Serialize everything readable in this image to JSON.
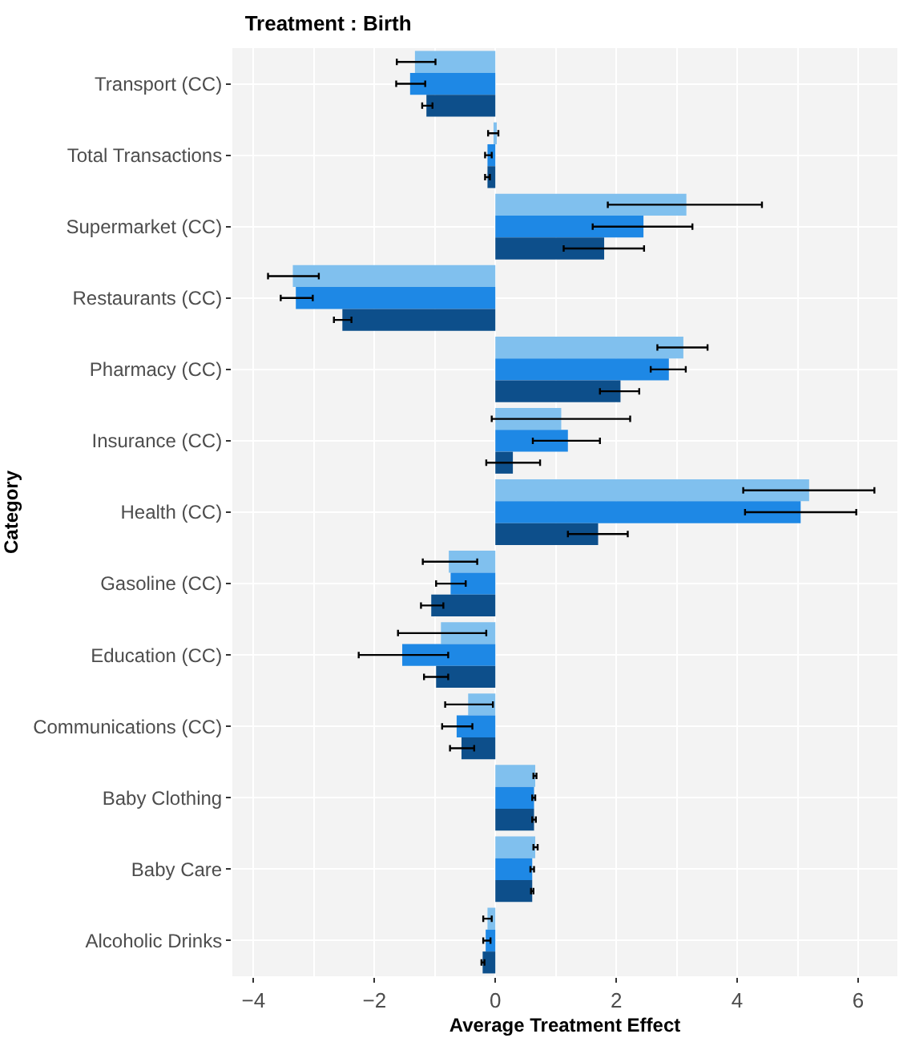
{
  "chart_data": {
    "type": "bar",
    "orientation": "horizontal",
    "title": "Treatment : Birth",
    "xlabel": "Average Treatment Effect",
    "ylabel": "Category",
    "categories": [
      "Transport (CC)",
      "Total Transactions",
      "Supermarket (CC)",
      "Restaurants (CC)",
      "Pharmacy (CC)",
      "Insurance (CC)",
      "Health (CC)",
      "Gasoline (CC)",
      "Education (CC)",
      "Communications (CC)",
      "Baby Clothing",
      "Baby Care",
      "Alcoholic Drinks"
    ],
    "series": [
      {
        "color": "#80c0ee",
        "values": [
          -1.33,
          -0.03,
          3.16,
          -3.35,
          3.11,
          1.09,
          5.19,
          -0.77,
          -0.9,
          -0.45,
          0.66,
          0.66,
          -0.13
        ],
        "errors": [
          [
            -1.63,
            -0.99
          ],
          [
            -0.12,
            0.05
          ],
          [
            1.86,
            4.41
          ],
          [
            -3.76,
            -2.92
          ],
          [
            2.68,
            3.51
          ],
          [
            -0.06,
            2.23
          ],
          [
            4.1,
            6.27
          ],
          [
            -1.2,
            -0.3
          ],
          [
            -1.61,
            -0.15
          ],
          [
            -0.83,
            -0.04
          ],
          [
            0.63,
            0.68
          ],
          [
            0.63,
            0.7
          ],
          [
            -0.2,
            -0.06
          ]
        ]
      },
      {
        "color": "#1e88e5",
        "values": [
          -1.41,
          -0.13,
          2.45,
          -3.3,
          2.87,
          1.2,
          5.05,
          -0.74,
          -1.54,
          -0.64,
          0.64,
          0.61,
          -0.16
        ],
        "errors": [
          [
            -1.64,
            -1.16
          ],
          [
            -0.17,
            -0.06
          ],
          [
            1.61,
            3.26
          ],
          [
            -3.55,
            -3.02
          ],
          [
            2.57,
            3.15
          ],
          [
            0.62,
            1.73
          ],
          [
            4.13,
            5.97
          ],
          [
            -0.98,
            -0.49
          ],
          [
            -2.26,
            -0.78
          ],
          [
            -0.88,
            -0.38
          ],
          [
            0.61,
            0.66
          ],
          [
            0.58,
            0.64
          ],
          [
            -0.2,
            -0.08
          ]
        ]
      },
      {
        "color": "#0d4f8b",
        "values": [
          -1.14,
          -0.13,
          1.8,
          -2.53,
          2.07,
          0.29,
          1.7,
          -1.06,
          -0.98,
          -0.56,
          0.64,
          0.61,
          -0.21
        ],
        "errors": [
          [
            -1.21,
            -1.04
          ],
          [
            -0.17,
            -0.09
          ],
          [
            1.13,
            2.46
          ],
          [
            -2.67,
            -2.38
          ],
          [
            1.73,
            2.38
          ],
          [
            -0.15,
            0.74
          ],
          [
            1.2,
            2.19
          ],
          [
            -1.23,
            -0.86
          ],
          [
            -1.18,
            -0.78
          ],
          [
            -0.75,
            -0.35
          ],
          [
            0.61,
            0.67
          ],
          [
            0.59,
            0.63
          ],
          [
            -0.23,
            -0.18
          ]
        ]
      }
    ],
    "xlim": [
      -4.35,
      6.65
    ],
    "xticks": [
      {
        "value": -4,
        "label": "−4"
      },
      {
        "value": -2,
        "label": "−2"
      },
      0,
      2,
      4,
      6
    ],
    "grid": true
  }
}
